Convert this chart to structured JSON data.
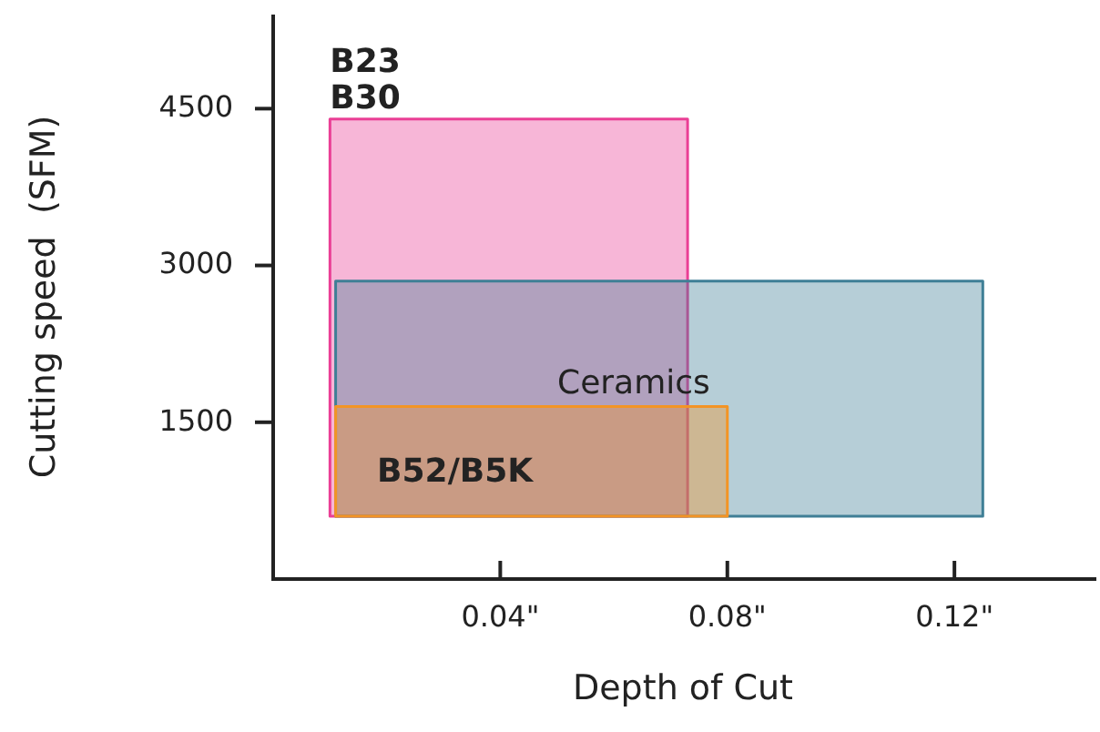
{
  "chart_data": {
    "type": "area",
    "xlabel": "Depth of Cut",
    "ylabel": "Cutting speed  (SFM)",
    "xlim": [
      0,
      0.145
    ],
    "ylim": [
      0,
      5400
    ],
    "xticks": [
      {
        "value": 0.04,
        "label": "0.04\""
      },
      {
        "value": 0.08,
        "label": "0.08\""
      },
      {
        "value": 0.12,
        "label": "0.12\""
      }
    ],
    "yticks": [
      1500,
      3000,
      4500
    ],
    "grid": false,
    "series": [
      {
        "name": "B23\nB30",
        "color": "#ea3f95",
        "x": [
          0.01,
          0.073,
          0.073,
          0.01,
          0.01
        ],
        "values": [
          600,
          600,
          4400,
          4400,
          600
        ]
      },
      {
        "name": "Ceramics",
        "color": "#3f7f96",
        "x": [
          0.011,
          0.125,
          0.125,
          0.011,
          0.011
        ],
        "values": [
          600,
          600,
          2850,
          2850,
          600
        ]
      },
      {
        "name": "B52/B5K",
        "color": "#f39425",
        "x": [
          0.011,
          0.08,
          0.08,
          0.011,
          0.011
        ],
        "values": [
          600,
          600,
          1650,
          1650,
          600
        ]
      }
    ]
  }
}
